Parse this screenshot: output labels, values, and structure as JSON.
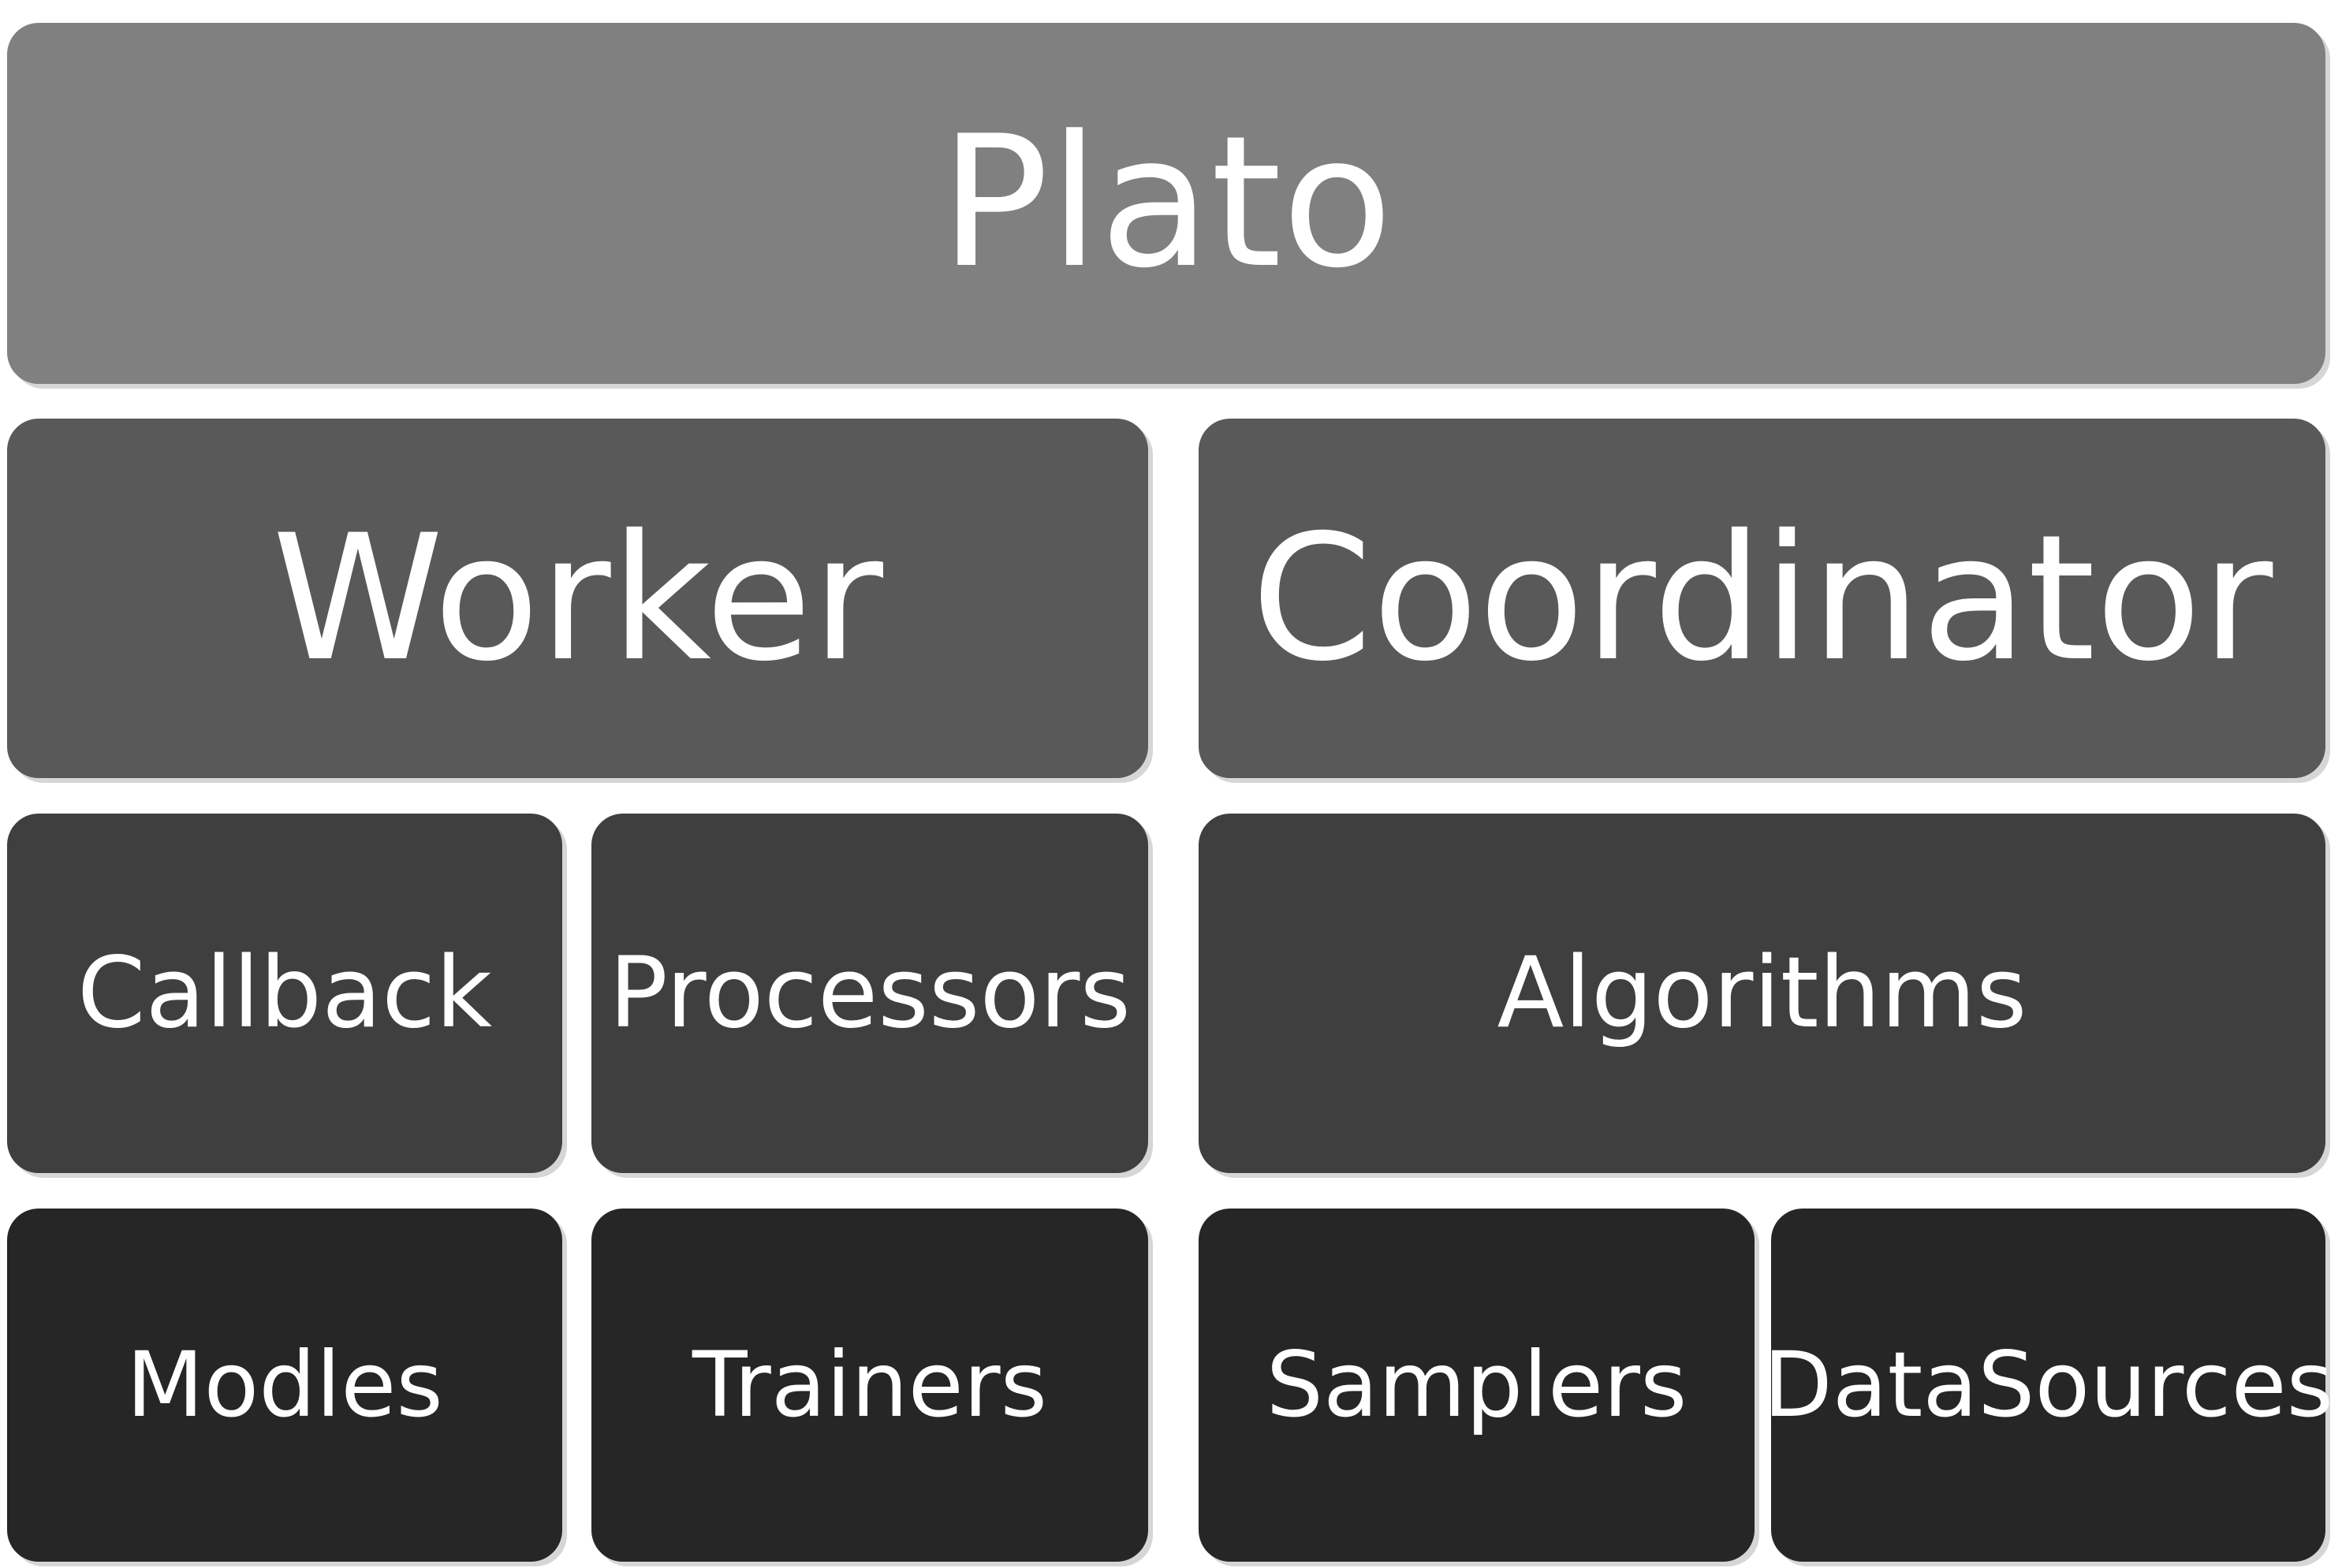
{
  "diagram": {
    "layers": [
      {
        "blocks": [
          {
            "label": "Plato"
          }
        ]
      },
      {
        "blocks": [
          {
            "label": "Worker"
          },
          {
            "label": "Coordinator"
          }
        ]
      },
      {
        "blocks": [
          {
            "label": "Callback"
          },
          {
            "label": "Processors"
          },
          {
            "label": "Algorithms"
          }
        ]
      },
      {
        "blocks": [
          {
            "label": "Modles"
          },
          {
            "label": "Trainers"
          },
          {
            "label": "Samplers"
          },
          {
            "label": "DataSources"
          }
        ]
      }
    ],
    "colors": {
      "layer_1": "#808080",
      "layer_2": "#595959",
      "layer_3": "#3f3f3f",
      "layer_4": "#262626",
      "text": "#ffffff"
    }
  }
}
